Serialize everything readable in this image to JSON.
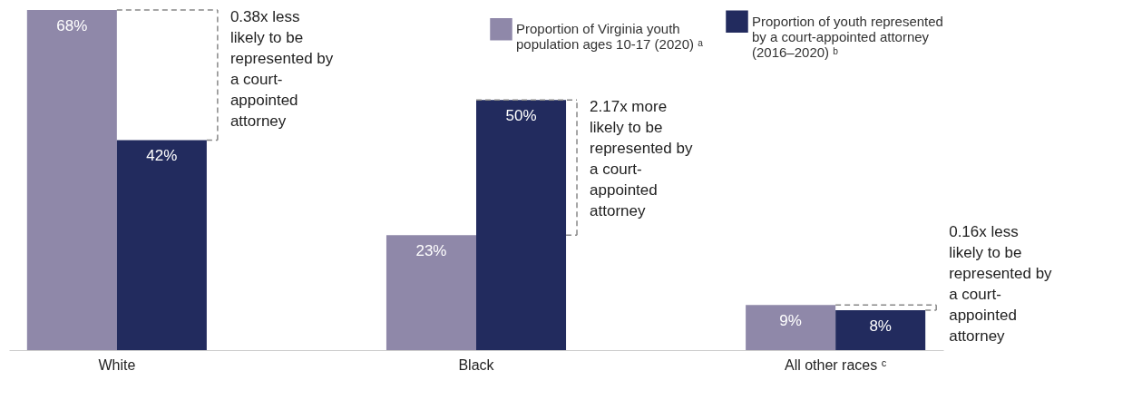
{
  "chart_data": {
    "type": "bar",
    "categories": [
      "White",
      "Black",
      "All other races ᶜ"
    ],
    "series": [
      {
        "name": "Proportion of Virginia youth population ages 10-17 (2020) ᵃ",
        "color": "#8f88a9",
        "values": [
          68,
          23,
          9
        ],
        "value_labels": [
          "68%",
          "23%",
          "9%"
        ]
      },
      {
        "name": "Proportion of youth represented by a court-appointed attorney (2016–2020) ᵇ",
        "color": "#222b5e",
        "values": [
          42,
          50,
          8
        ],
        "value_labels": [
          "42%",
          "50%",
          "8%"
        ]
      }
    ],
    "annotations": [
      "0.38x less likely to be represented by a court-appointed attorney",
      "2.17x more likely to be represented by a court-appointed attorney",
      "0.16x less likely to be represented by a court-appointed attorney"
    ],
    "legend": "top right",
    "grid": false
  }
}
